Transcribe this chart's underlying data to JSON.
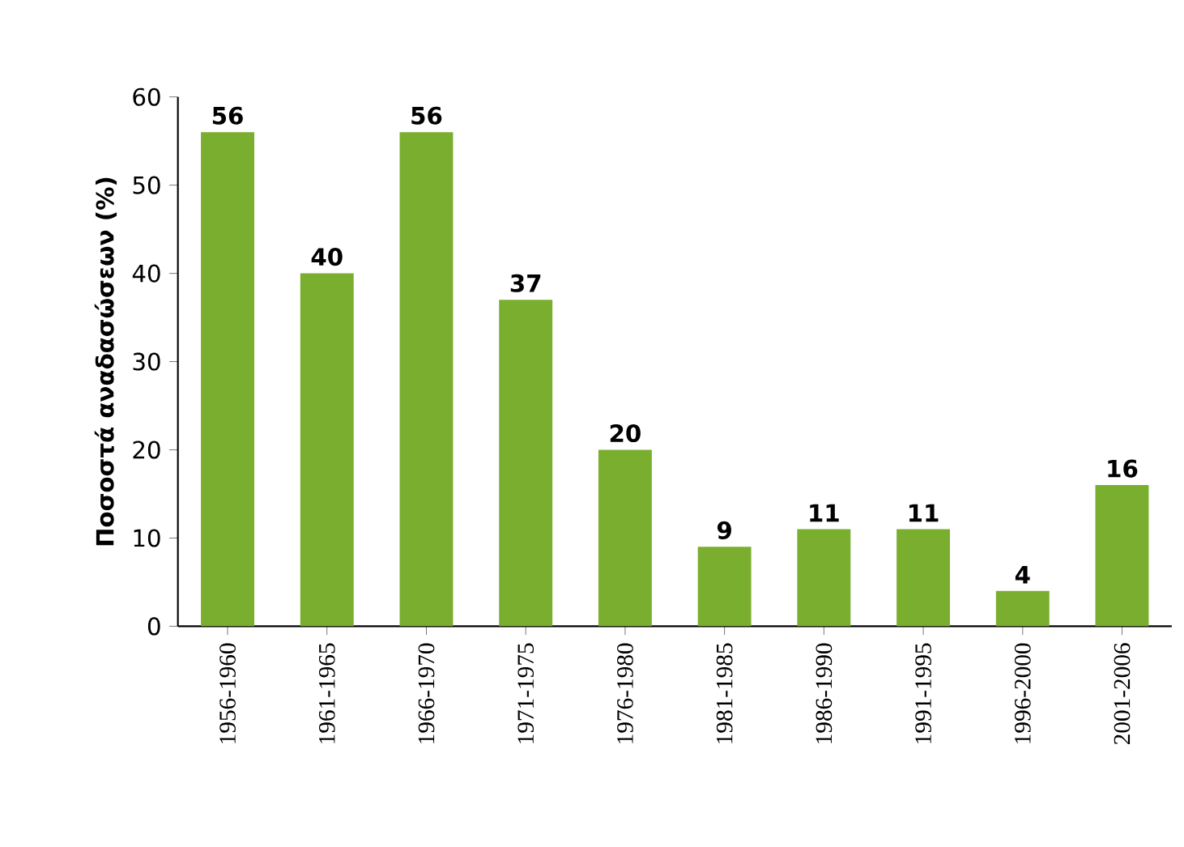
{
  "chart_data": {
    "type": "bar",
    "ylabel": "Ποσοστά αναδασώσεων (%)",
    "categories": [
      "1956-1960",
      "1961-1965",
      "1966-1970",
      "1971-1975",
      "1976-1980",
      "1981-1985",
      "1986-1990",
      "1991-1995",
      "1996-2000",
      "2001-2006"
    ],
    "values": [
      56,
      40,
      56,
      37,
      20,
      9,
      11,
      11,
      4,
      16
    ],
    "color": "#7aae2e",
    "ylim": [
      0,
      60
    ],
    "yticks": [
      0,
      10,
      20,
      30,
      40,
      50,
      60
    ],
    "data_labels": true,
    "grid": false
  }
}
